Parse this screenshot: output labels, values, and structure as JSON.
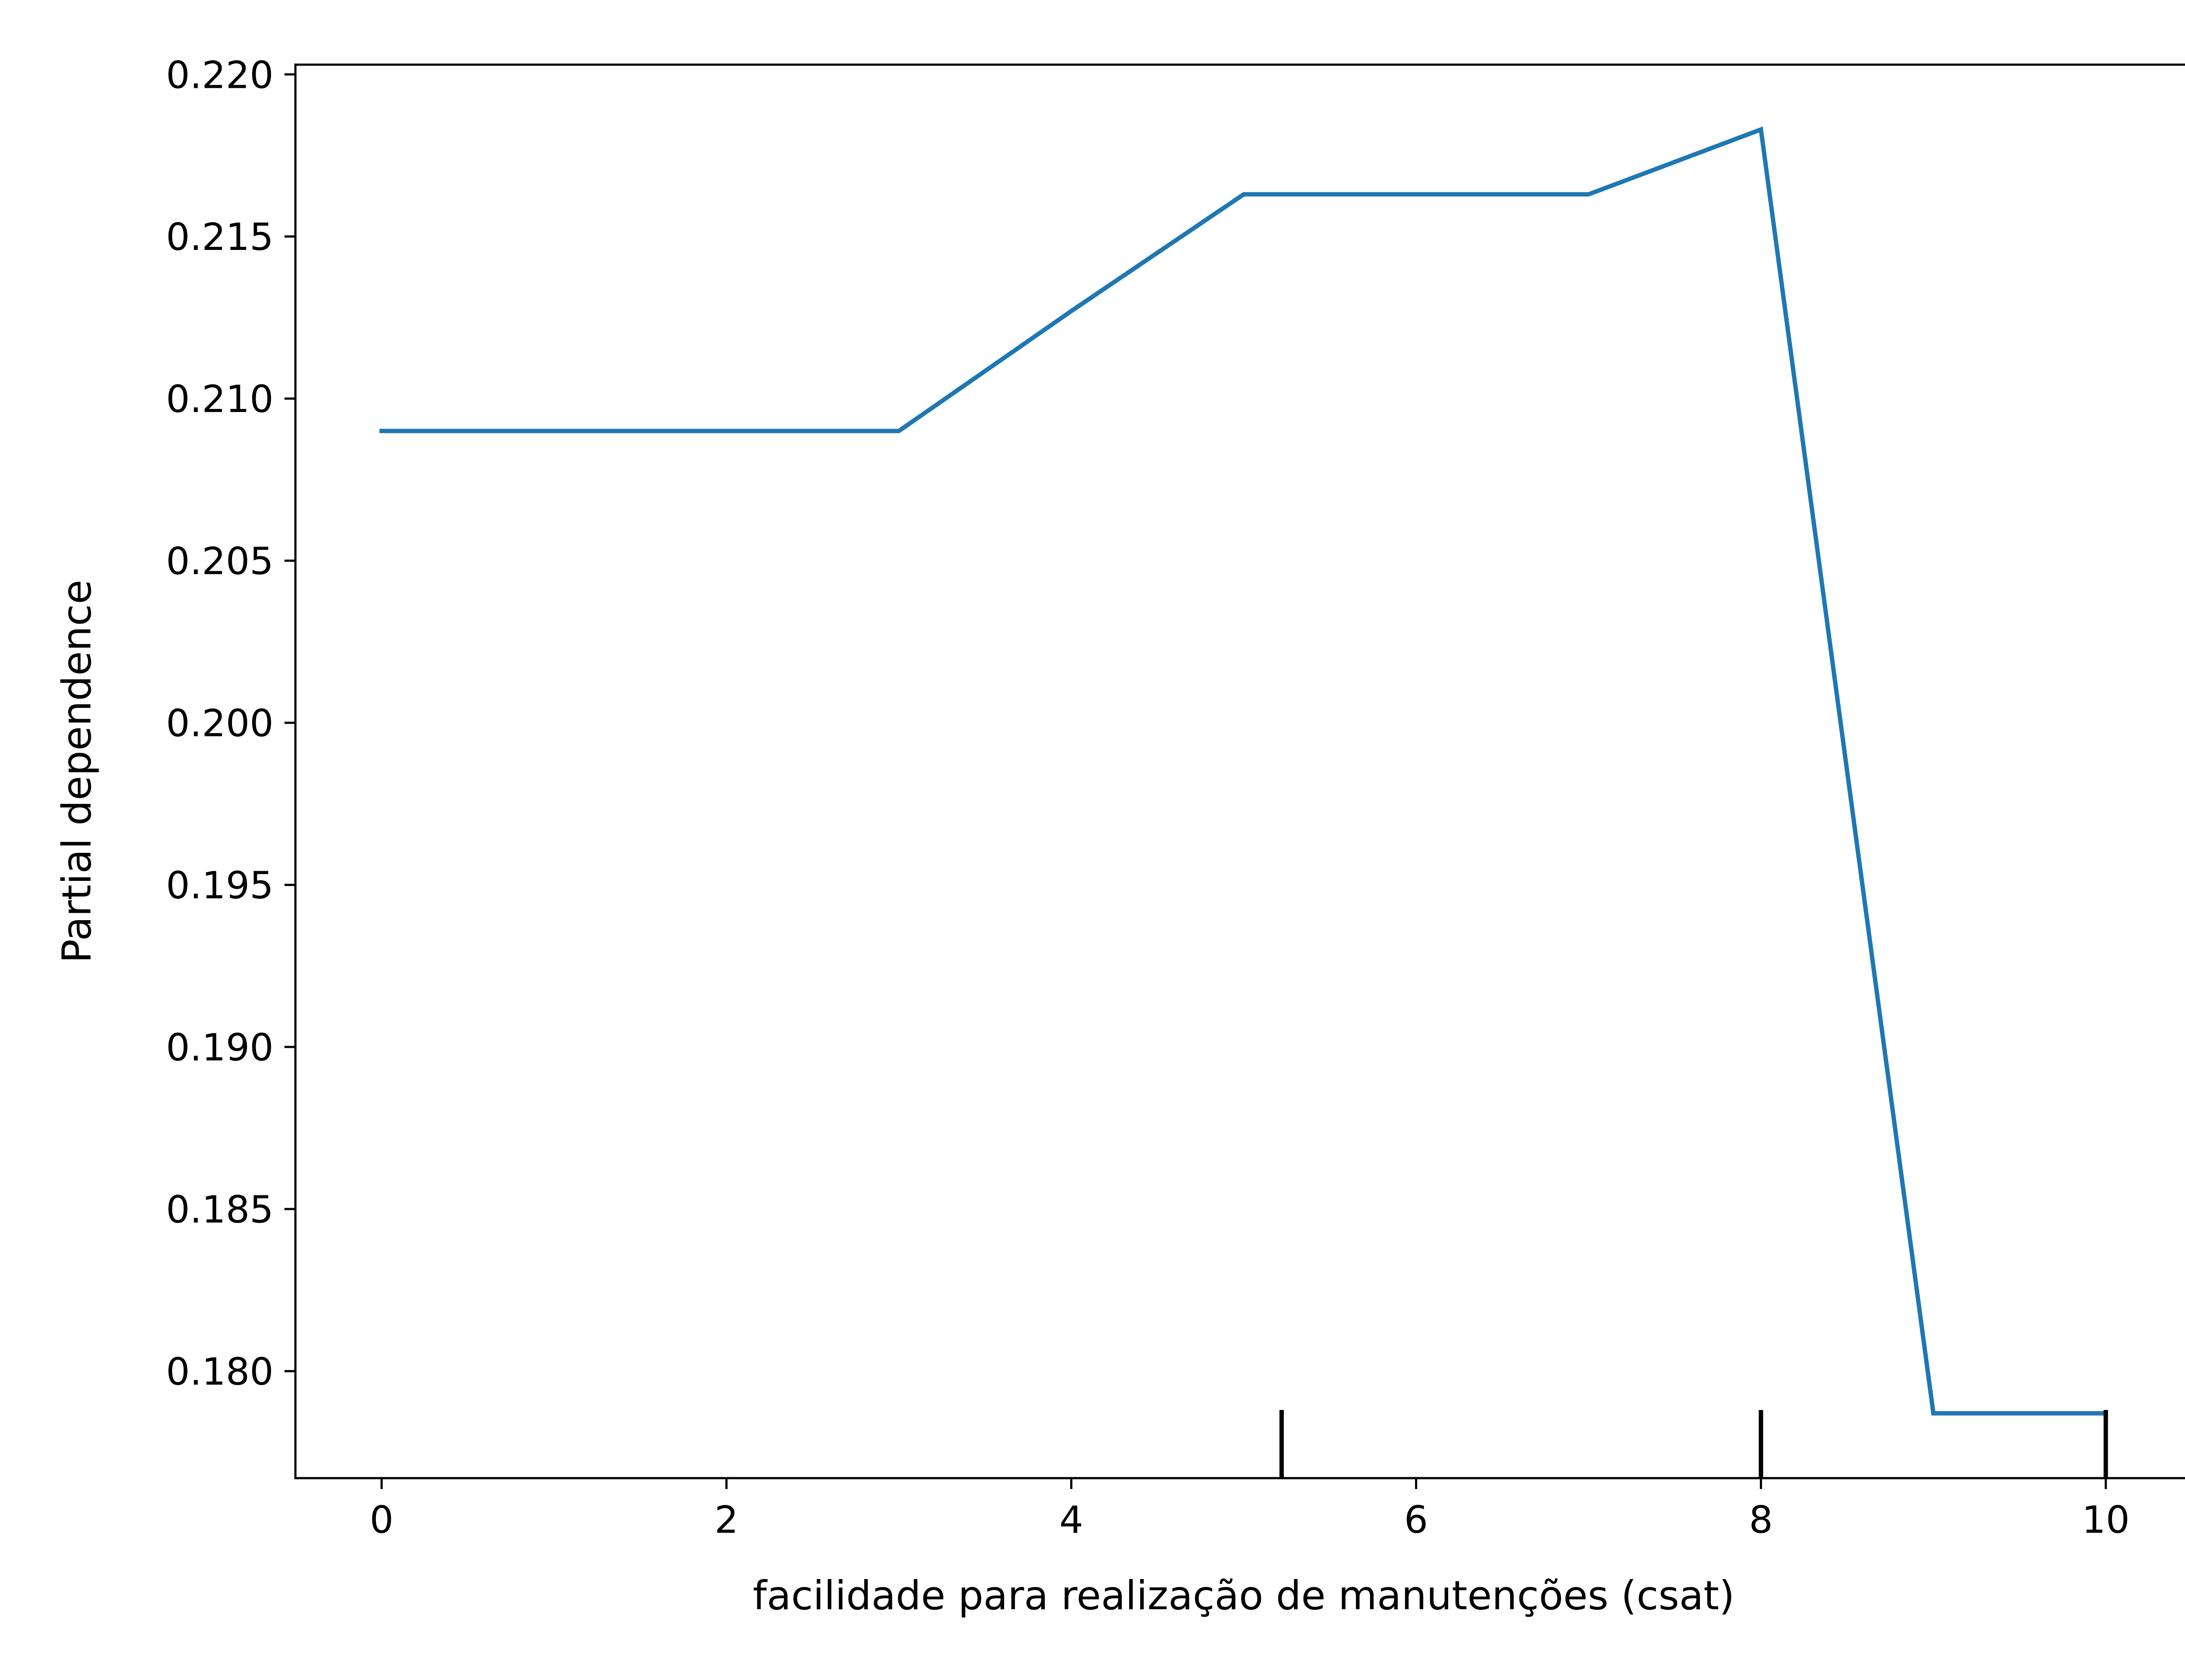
{
  "chart_data": {
    "type": "line",
    "title": "",
    "xlabel": "facilidade para realização de manutenções (csat)",
    "ylabel": "Partial dependence",
    "xlim": [
      -0.5,
      10.5
    ],
    "ylim": [
      0.1767,
      0.2203
    ],
    "xticks": [
      0,
      2,
      4,
      6,
      8,
      10
    ],
    "xtick_labels": [
      "0",
      "2",
      "4",
      "6",
      "8",
      "10"
    ],
    "yticks": [
      0.18,
      0.185,
      0.19,
      0.195,
      0.2,
      0.205,
      0.21,
      0.215,
      0.22
    ],
    "ytick_labels": [
      "0.180",
      "0.185",
      "0.190",
      "0.195",
      "0.200",
      "0.205",
      "0.210",
      "0.215",
      "0.220"
    ],
    "grid": false,
    "legend": "none",
    "series": [
      {
        "color": "#1f77b4",
        "x": [
          0,
          1,
          2,
          3,
          4,
          5,
          6,
          7,
          8,
          9,
          10
        ],
        "values": [
          0.209,
          0.209,
          0.209,
          0.209,
          0.2127,
          0.2163,
          0.2163,
          0.2163,
          0.2183,
          0.1787,
          0.1787
        ]
      }
    ],
    "rug": {
      "color": "#000000",
      "x": [
        5.22,
        8.0,
        10.0
      ]
    }
  }
}
